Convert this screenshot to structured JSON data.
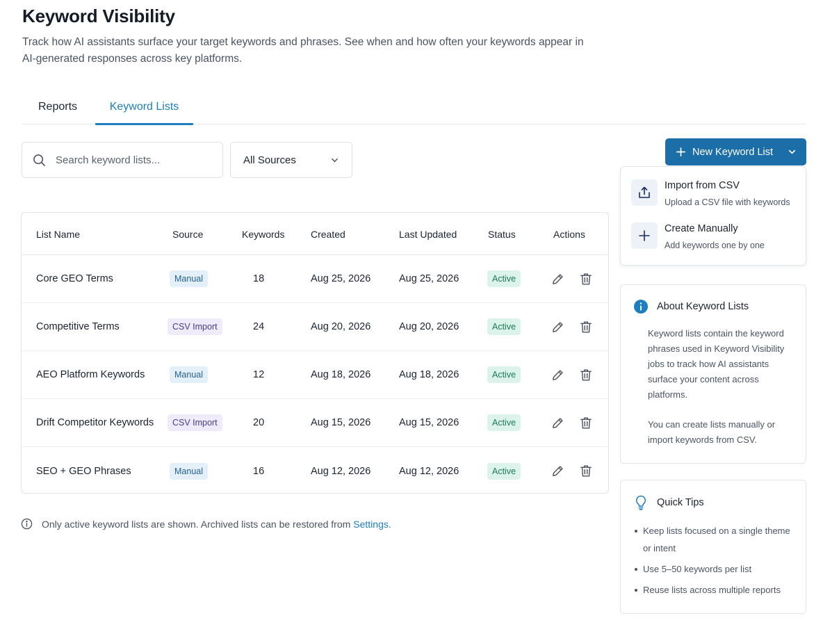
{
  "page": {
    "title": "Keyword Visibility",
    "description": "Track how AI assistants surface your target keywords and phrases. See when and how often your keywords appear in AI-generated responses across key platforms."
  },
  "tabs": [
    {
      "label": "Reports",
      "active": false
    },
    {
      "label": "Keyword Lists",
      "active": true
    }
  ],
  "toolbar": {
    "search_placeholder": "Search keyword lists...",
    "source_filter": "All Sources"
  },
  "table": {
    "columns": [
      "List Name",
      "Source",
      "Keywords",
      "Created",
      "Last Updated",
      "Status",
      "Actions"
    ],
    "rows": [
      {
        "name": "Core GEO Terms",
        "source": "Manual",
        "source_type": "manual",
        "keywords": "18",
        "created": "Aug 25, 2026",
        "updated": "Aug 25, 2026",
        "status": "Active"
      },
      {
        "name": "Competitive Terms",
        "source": "CSV Import",
        "source_type": "csv",
        "keywords": "24",
        "created": "Aug 20, 2026",
        "updated": "Aug 20, 2026",
        "status": "Active"
      },
      {
        "name": "AEO Platform Keywords",
        "source": "Manual",
        "source_type": "manual",
        "keywords": "12",
        "created": "Aug 18, 2026",
        "updated": "Aug 18, 2026",
        "status": "Active"
      },
      {
        "name": "Drift Competitor Keywords",
        "source": "CSV Import",
        "source_type": "csv",
        "keywords": "20",
        "created": "Aug 15, 2026",
        "updated": "Aug 15, 2026",
        "status": "Active"
      },
      {
        "name": "SEO + GEO Phrases",
        "source": "Manual",
        "source_type": "manual",
        "keywords": "16",
        "created": "Aug 12, 2026",
        "updated": "Aug 12, 2026",
        "status": "Active"
      }
    ]
  },
  "footer_note": {
    "text": "Only active keyword lists are shown. Archived lists can be restored from",
    "link": "Settings."
  },
  "new_button": {
    "label": "New Keyword List"
  },
  "dropdown_menu": {
    "items": [
      {
        "title": "Import from CSV",
        "subtitle": "Upload a CSV file with keywords",
        "icon": "upload-icon"
      },
      {
        "title": "Create Manually",
        "subtitle": "Add keywords one by one",
        "icon": "plus-icon"
      }
    ]
  },
  "about_panel": {
    "title": "About Keyword Lists",
    "paragraph1": "Keyword lists contain the keyword phrases used in Keyword Visibility jobs to track how AI assistants surface your content across platforms.",
    "paragraph2": "You can create lists manually or import keywords from CSV."
  },
  "tips_panel": {
    "title": "Quick Tips",
    "tips": [
      "Keep lists focused on a single theme or intent",
      "Use 5–50 keywords per list",
      "Reuse lists across multiple reports"
    ]
  },
  "colors": {
    "accent": "#1d7fbf",
    "primary_button": "#1b6ea8",
    "active_badge_bg": "#dbf3ea",
    "manual_badge_bg": "#e4f0f9",
    "csv_badge_bg": "#efebfa"
  }
}
